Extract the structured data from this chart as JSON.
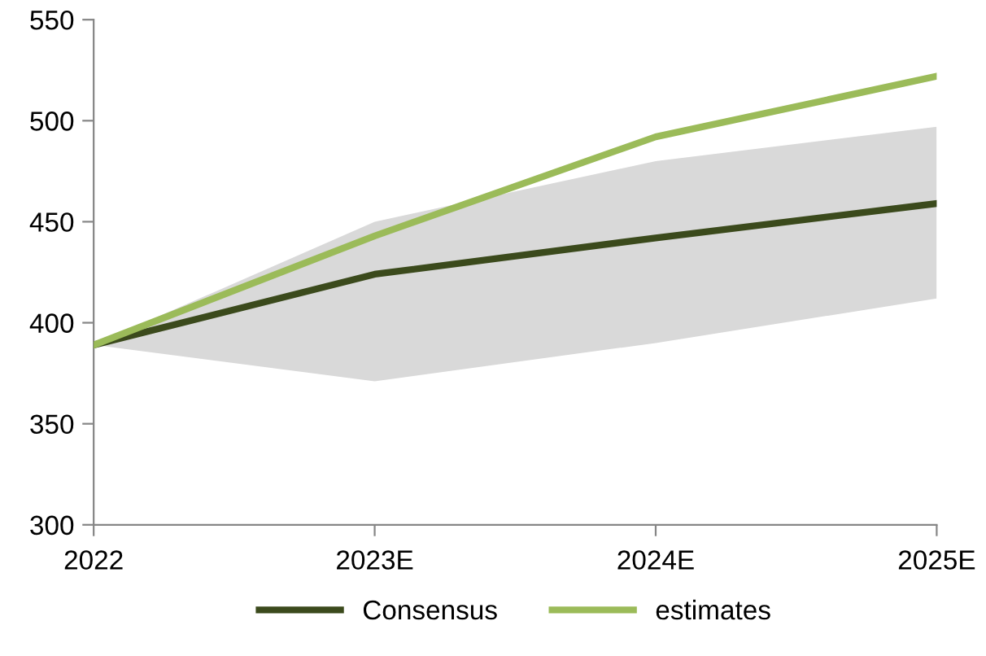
{
  "chart_data": {
    "type": "line",
    "categories": [
      "2022",
      "2023E",
      "2024E",
      "2025E"
    ],
    "series": [
      {
        "name": "Consensus",
        "color": "#3b4a1c",
        "values": [
          389,
          424,
          442,
          459
        ],
        "lower": [
          389,
          371,
          390,
          412
        ],
        "upper": [
          389,
          450,
          480,
          497
        ]
      },
      {
        "name": "estimates",
        "color": "#9bbb59",
        "values": [
          389,
          443,
          492,
          522
        ]
      }
    ],
    "ylim": [
      300,
      550
    ],
    "yticks": [
      300,
      350,
      400,
      450,
      500,
      550
    ],
    "grid": false,
    "legend": "bottom",
    "marker": "none",
    "line_style": "solid"
  }
}
